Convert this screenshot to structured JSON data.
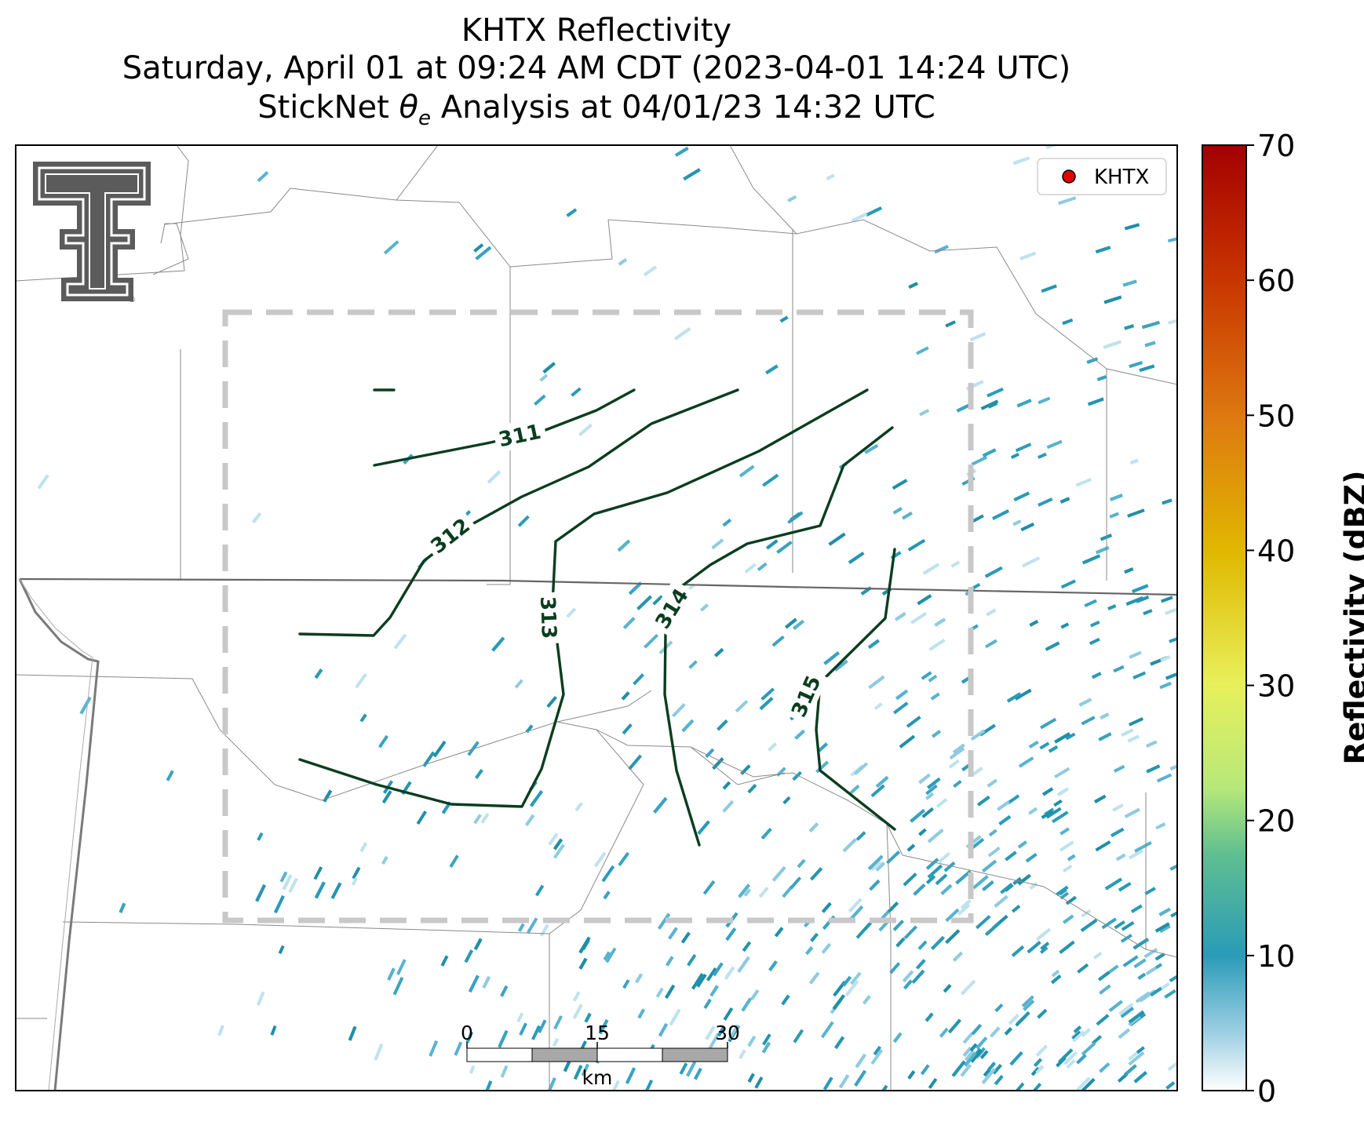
{
  "title": {
    "line1": "KHTX Reflectivity",
    "line2": "Saturday, April 01 at 09:24 AM CDT (2023-04-01 14:24 UTC)",
    "line3_pre": "StickNet ",
    "line3_theta": "θ",
    "line3_sub": "e",
    "line3_post": " Analysis at 04/01/23 14:32 UTC"
  },
  "legend": {
    "label": "KHTX",
    "marker_color": "#e00000"
  },
  "colorbar": {
    "label": "Reflectivity (dBZ)",
    "ticks": [
      "0",
      "10",
      "20",
      "30",
      "40",
      "50",
      "60",
      "70"
    ],
    "range": [
      0,
      70
    ]
  },
  "scalebar": {
    "ticks": [
      "0",
      "15",
      "30"
    ],
    "unit": "km"
  },
  "contours": [
    {
      "value": "311"
    },
    {
      "value": "312"
    },
    {
      "value": "313"
    },
    {
      "value": "314"
    },
    {
      "value": "315"
    }
  ],
  "logo": {
    "name": "texas-tech-double-t-logo"
  },
  "colors": {
    "contour": "#0a3d1f",
    "reflectivity_low": "#2a9bb8",
    "domain_box": "#c8c8c8"
  }
}
